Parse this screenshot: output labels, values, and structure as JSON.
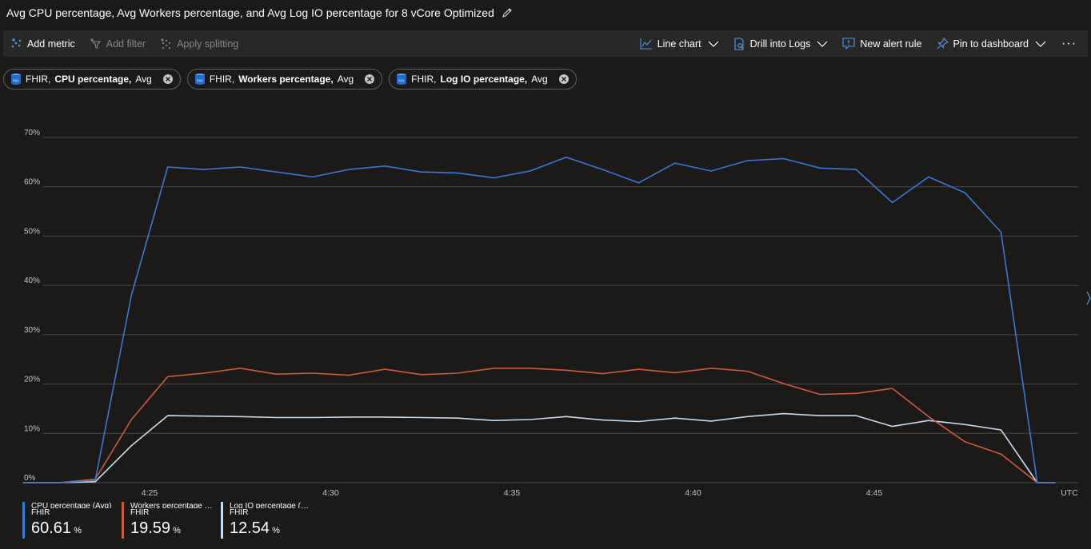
{
  "title": "Avg CPU percentage, Avg Workers percentage, and Avg Log IO percentage for 8 vCore Optimized",
  "toolbar": {
    "add_metric": "Add metric",
    "add_filter": "Add filter",
    "apply_splitting": "Apply splitting",
    "line_chart": "Line chart",
    "drill_into_logs": "Drill into Logs",
    "new_alert_rule": "New alert rule",
    "pin_to_dashboard": "Pin to dashboard",
    "more": "···"
  },
  "pills": [
    {
      "resource": "FHIR,",
      "metric": "CPU percentage,",
      "agg": "Avg"
    },
    {
      "resource": "FHIR,",
      "metric": "Workers percentage,",
      "agg": "Avg"
    },
    {
      "resource": "FHIR,",
      "metric": "Log IO percentage,",
      "agg": "Avg"
    }
  ],
  "timezone": "UTC",
  "colors": {
    "cpu": "#3a78d8",
    "workers": "#cf5a3d",
    "logio": "#c6dcf2",
    "grid": "#4a4948"
  },
  "chart_data": {
    "type": "line",
    "x_ticks": [
      "4:25",
      "4:30",
      "4:35",
      "4:40",
      "4:45"
    ],
    "y_ticks": [
      "0%",
      "10%",
      "20%",
      "30%",
      "40%",
      "50%",
      "60%",
      "70%"
    ],
    "ylim": [
      0,
      70
    ],
    "x_minutes": [
      21.5,
      22.5,
      23.5,
      24.5,
      25.5,
      26.5,
      27.5,
      28.5,
      29.5,
      30.5,
      31.5,
      32.5,
      33.5,
      34.5,
      35.5,
      36.5,
      37.5,
      38.5,
      39.5,
      40.5,
      41.5,
      42.5,
      43.5,
      44.5,
      45.5,
      46.5,
      47.5,
      48.5,
      49.5,
      50.0
    ],
    "series": [
      {
        "name": "CPU percentage (Avg)",
        "key": "cpu",
        "values": [
          0,
          0,
          0.5,
          38,
          64,
          63.5,
          64,
          63,
          62,
          63.5,
          64.2,
          63,
          62.8,
          61.8,
          63.2,
          66,
          63.5,
          60.8,
          64.8,
          63.2,
          65.3,
          65.7,
          63.8,
          63.5,
          56.8,
          62,
          58.8,
          50.8,
          0,
          0
        ]
      },
      {
        "name": "Workers percentage (Avg)",
        "key": "workers",
        "values": [
          0,
          0,
          0.7,
          12.8,
          21.5,
          22.2,
          23.2,
          22,
          22.2,
          21.8,
          23,
          21.9,
          22.2,
          23.2,
          23.2,
          22.8,
          22.1,
          23,
          22.3,
          23.2,
          22.6,
          20.1,
          17.9,
          18.1,
          19.1,
          13.4,
          8.3,
          5.8,
          0,
          0
        ]
      },
      {
        "name": "Log IO percentage (Avg)",
        "key": "logio",
        "values": [
          0,
          0,
          0.2,
          7.5,
          13.6,
          13.5,
          13.4,
          13.2,
          13.2,
          13.3,
          13.3,
          13.2,
          13.1,
          12.6,
          12.8,
          13.4,
          12.7,
          12.4,
          13.1,
          12.5,
          13.4,
          14,
          13.6,
          13.6,
          11.4,
          12.6,
          11.8,
          10.7,
          0,
          0
        ]
      }
    ]
  },
  "legend": [
    {
      "label": "CPU percentage (Avg)",
      "resource": "FHIR",
      "value": "60.61",
      "unit": "%"
    },
    {
      "label": "Workers percentage (...",
      "resource": "FHIR",
      "value": "19.59",
      "unit": "%"
    },
    {
      "label": "Log IO percentage (Avg)",
      "resource": "FHIR",
      "value": "12.54",
      "unit": "%"
    }
  ]
}
